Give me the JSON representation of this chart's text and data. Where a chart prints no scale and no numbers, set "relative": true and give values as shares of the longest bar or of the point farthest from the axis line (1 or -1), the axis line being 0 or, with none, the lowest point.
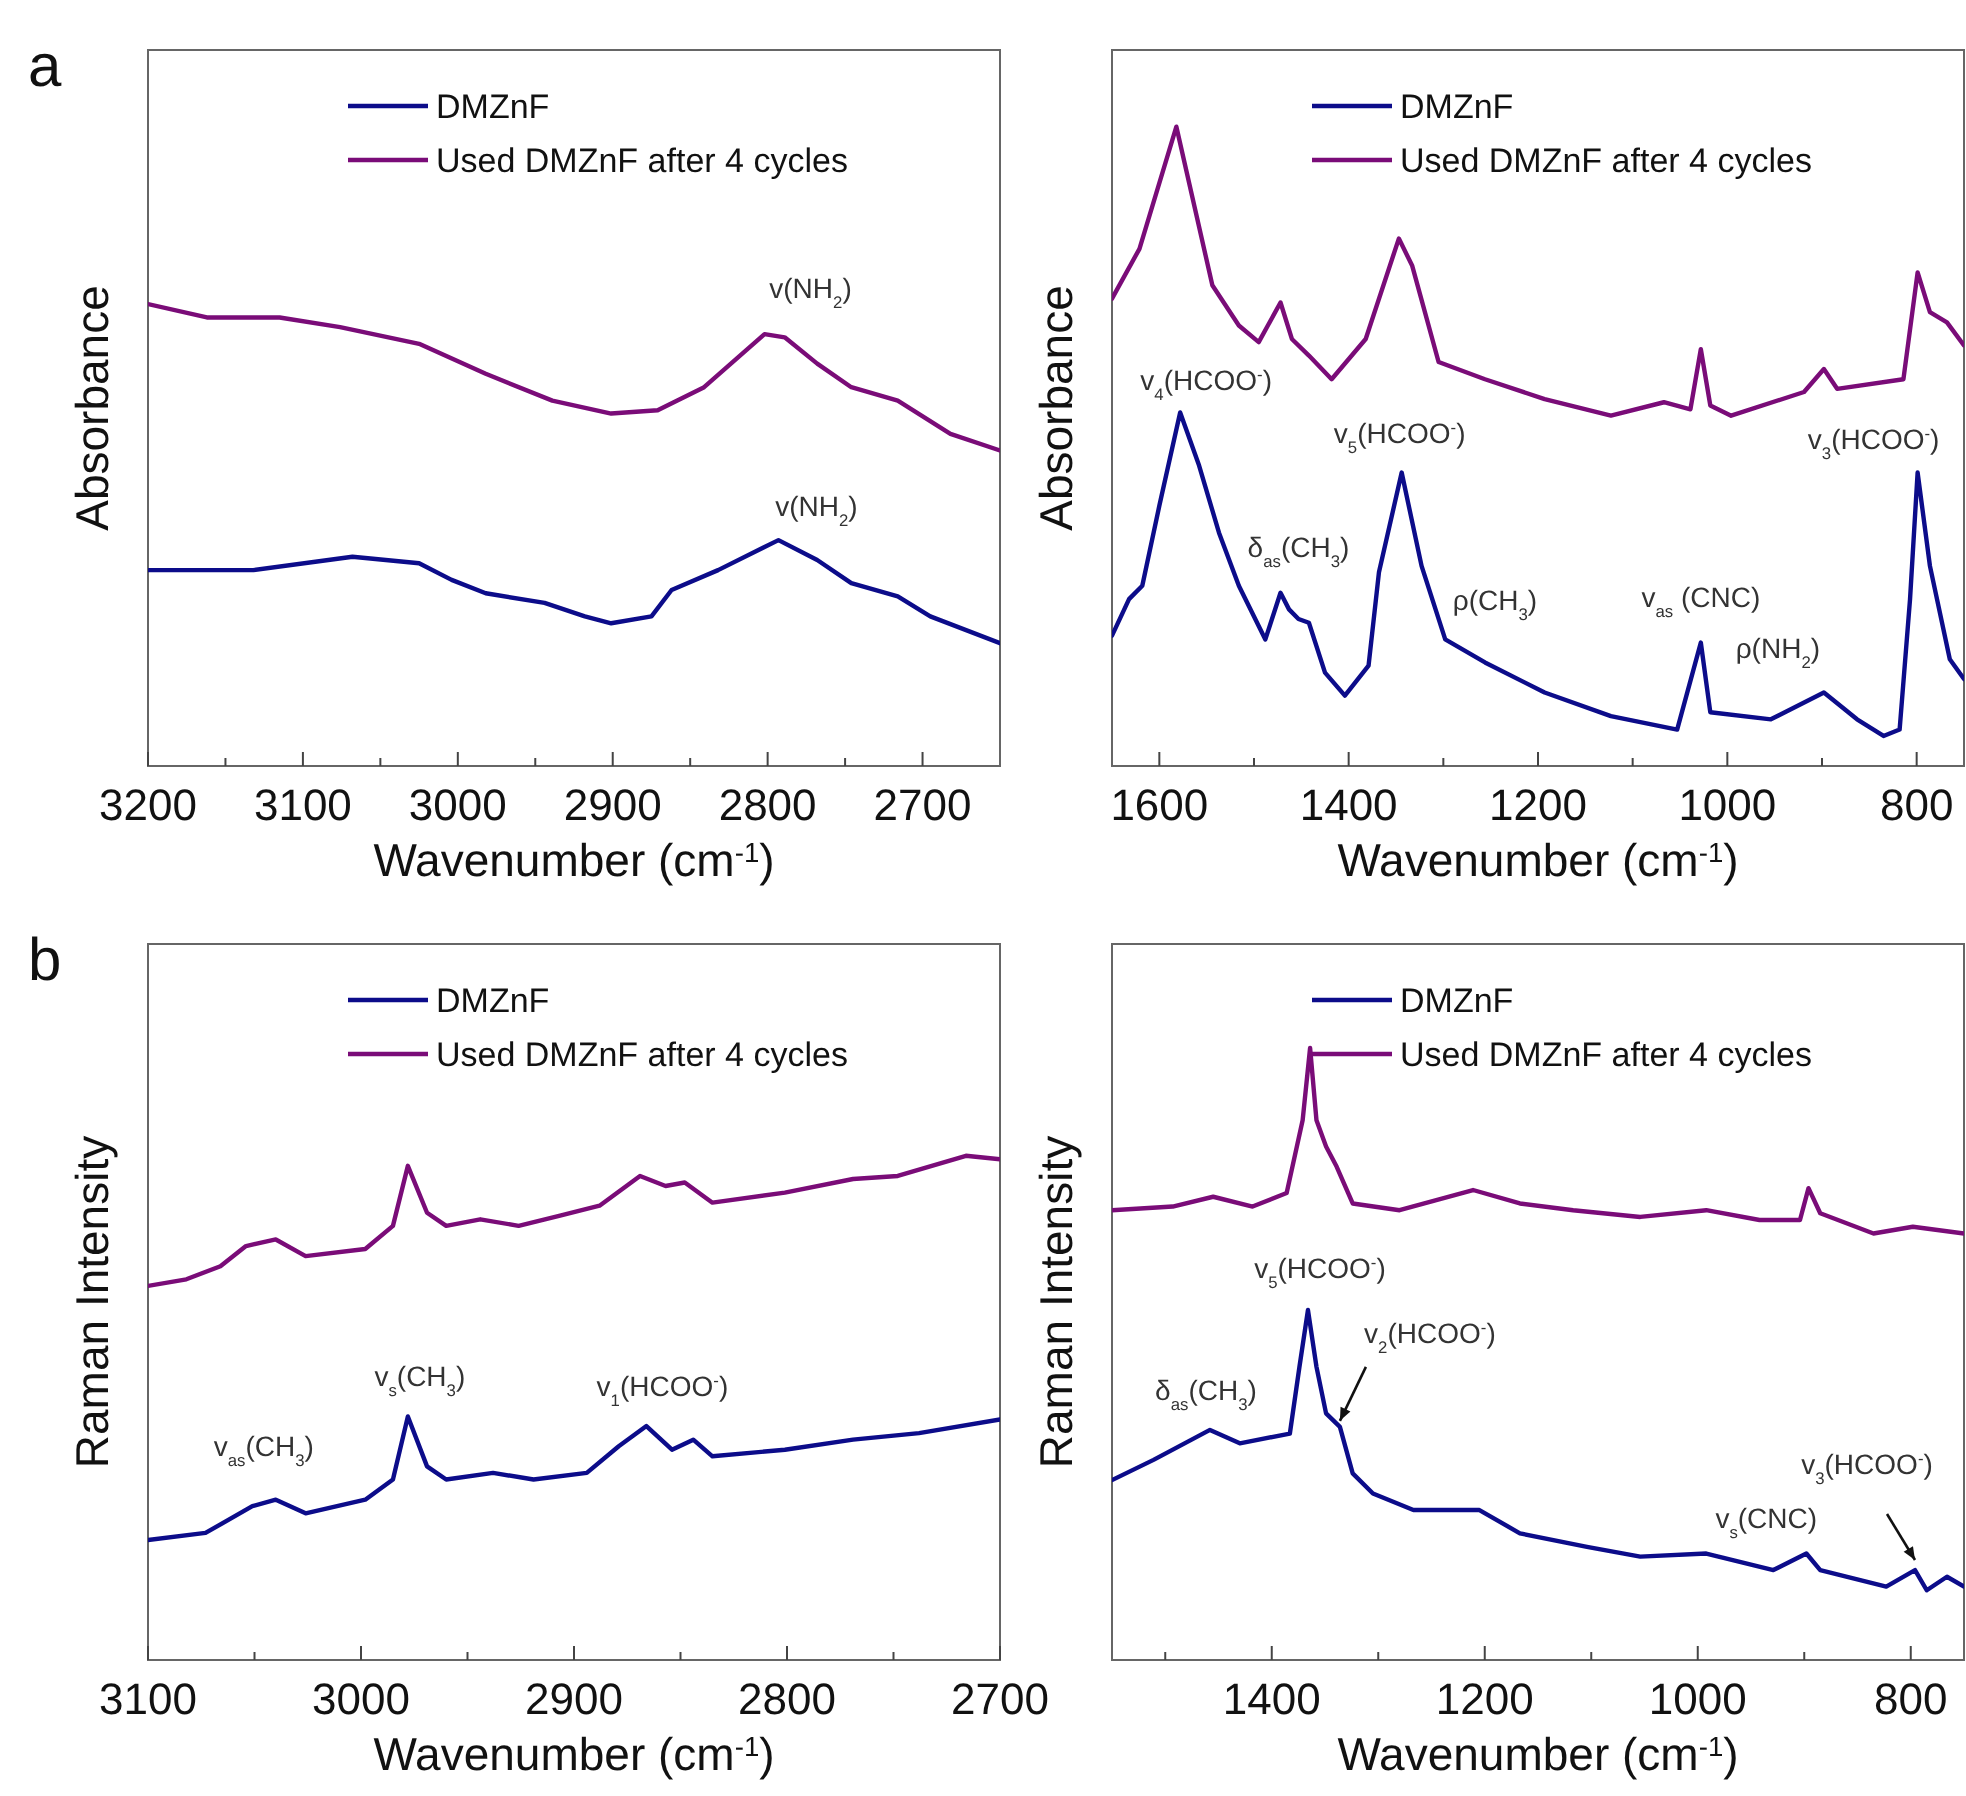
{
  "chart_data": [
    {
      "type": "line",
      "relative": true,
      "xlabel": "Wavenumber (cm$^{-1}$)",
      "ylabel": "Absorbance",
      "xlim": [
        3200,
        2650
      ],
      "xticks": [
        3200,
        {
          "value": 3150,
          "label": null
        },
        3100,
        {
          "value": 3050,
          "label": null
        },
        3000,
        {
          "value": 2950,
          "label": null
        },
        2900,
        {
          "value": 2850,
          "label": null
        },
        2800,
        {
          "value": 2750,
          "label": null
        },
        2700
      ],
      "legend": "top right",
      "annotations": [
        "a",
        {
          "text": "v(NH$_{2}$)",
          "x": 2802,
          "y": 0.935
        },
        {
          "text": "v(NH$_{2}$)",
          "x": 2793,
          "y": 0.489
        }
      ],
      "series": [
        {
          "name": "DMZnF",
          "color": "#0c0c8a",
          "x": [
            3200,
            3132,
            3068,
            3025,
            3004,
            2982,
            2944,
            2918,
            2901,
            2875,
            2862,
            2832,
            2793,
            2768,
            2746,
            2716,
            2695,
            2650
          ],
          "values": [
            0.424,
            0.424,
            0.453,
            0.439,
            0.403,
            0.374,
            0.353,
            0.324,
            0.309,
            0.324,
            0.381,
            0.424,
            0.489,
            0.446,
            0.396,
            0.367,
            0.324,
            0.266
          ]
        },
        {
          "name": "Used DMZnF after 4 cycles",
          "color": "#7a0c78",
          "x": [
            3200,
            3162,
            3115,
            3076,
            3025,
            2982,
            2939,
            2901,
            2871,
            2841,
            2802,
            2789,
            2768,
            2746,
            2716,
            2682,
            2650
          ],
          "values": [
            1.0,
            0.971,
            0.971,
            0.95,
            0.914,
            0.849,
            0.791,
            0.763,
            0.77,
            0.82,
            0.935,
            0.928,
            0.871,
            0.82,
            0.791,
            0.719,
            0.683
          ]
        }
      ]
    },
    {
      "type": "line",
      "relative": true,
      "xlabel": "Wavenumber (cm$^{-1}$)",
      "ylabel": "Absorbance",
      "xlim": [
        1650,
        750
      ],
      "xticks": [
        1600,
        {
          "value": 1500,
          "label": null
        },
        1400,
        {
          "value": 1300,
          "label": null
        },
        1200,
        {
          "value": 1100,
          "label": null
        },
        1000,
        {
          "value": 900,
          "label": null
        },
        800
      ],
      "legend": "top right",
      "annotations": [
        {
          "text": "v$_{4}$(HCOO$^{-}$)",
          "x": 1578,
          "y": 0.553
        },
        {
          "text": "δ$_{as}$(CH$_{3}$)",
          "x": 1472,
          "y": 0.271
        },
        {
          "text": "v$_{5}$(HCOO$^{-}$)",
          "x": 1344,
          "y": 0.459
        },
        {
          "text": "ρ(CH$_{3}$)",
          "x": 1256,
          "y": 0.162
        },
        {
          "text": "v$_{as}$ (CNC)",
          "x": 1028,
          "y": 0.193
        },
        {
          "text": "ρ(NH$_{2}$)",
          "x": 898,
          "y": 0.115
        },
        {
          "text": "v$_{3}$(HCOO$^{-}$)",
          "x": 799,
          "y": 0.459
        }
      ],
      "series": [
        {
          "name": "DMZnF",
          "color": "#0c0c8a",
          "x": [
            1650,
            1632,
            1618,
            1600,
            1578,
            1558,
            1537,
            1516,
            1488,
            1472,
            1463,
            1453,
            1442,
            1425,
            1404,
            1379,
            1368,
            1344,
            1323,
            1298,
            1256,
            1193,
            1123,
            1053,
            1028,
            1018,
            954,
            898,
            863,
            835,
            818,
            807,
            799,
            786,
            765,
            750
          ],
          "values": [
            0.204,
            0.261,
            0.282,
            0.407,
            0.553,
            0.47,
            0.365,
            0.282,
            0.198,
            0.271,
            0.245,
            0.23,
            0.224,
            0.146,
            0.11,
            0.157,
            0.303,
            0.459,
            0.313,
            0.198,
            0.162,
            0.115,
            0.078,
            0.057,
            0.193,
            0.084,
            0.073,
            0.115,
            0.073,
            0.047,
            0.057,
            0.261,
            0.459,
            0.313,
            0.167,
            0.136
          ]
        },
        {
          "name": "Used DMZnF after 4 cycles",
          "color": "#7a0c78",
          "x": [
            1650,
            1621,
            1582,
            1544,
            1516,
            1495,
            1472,
            1460,
            1442,
            1418,
            1382,
            1347,
            1333,
            1305,
            1256,
            1193,
            1123,
            1067,
            1039,
            1028,
            1018,
            996,
            919,
            898,
            884,
            814,
            799,
            786,
            768,
            750
          ],
          "values": [
            0.731,
            0.809,
            1.0,
            0.752,
            0.689,
            0.663,
            0.725,
            0.668,
            0.642,
            0.605,
            0.668,
            0.825,
            0.783,
            0.632,
            0.605,
            0.574,
            0.548,
            0.569,
            0.558,
            0.652,
            0.564,
            0.548,
            0.585,
            0.621,
            0.59,
            0.605,
            0.772,
            0.71,
            0.694,
            0.658
          ]
        }
      ]
    },
    {
      "type": "line",
      "relative": true,
      "xlabel": "Wavenumber (cm$^{-1}$)",
      "ylabel": "Raman Intensity",
      "xlim": [
        3100,
        2700
      ],
      "xticks": [
        3100,
        {
          "value": 3050,
          "label": null
        },
        3000,
        {
          "value": 2950,
          "label": null
        },
        2900,
        {
          "value": 2850,
          "label": null
        },
        2800,
        {
          "value": 2750,
          "label": null
        },
        2700
      ],
      "legend": "top right",
      "annotations": [
        "b",
        {
          "text": "v$_{as}$(CH$_{3}$)",
          "x": 3040,
          "y": 0.318
        },
        {
          "text": "v$_{s}$(CH$_{3}$)",
          "x": 2978,
          "y": 0.483
        },
        {
          "text": "v$_{1}$(HCOO$^{-}$)",
          "x": 2866,
          "y": 0.464
        }
      ],
      "series": [
        {
          "name": "DMZnF",
          "color": "#0c0c8a",
          "x": [
            3100,
            3073,
            3051,
            3040,
            3026,
            2998,
            2985,
            2978,
            2969,
            2960,
            2938,
            2919,
            2894,
            2879,
            2866,
            2854,
            2844,
            2835,
            2801,
            2769,
            2738,
            2700
          ],
          "values": [
            0.238,
            0.252,
            0.305,
            0.318,
            0.291,
            0.318,
            0.358,
            0.483,
            0.384,
            0.358,
            0.371,
            0.358,
            0.371,
            0.424,
            0.464,
            0.417,
            0.437,
            0.404,
            0.417,
            0.437,
            0.45,
            0.477
          ]
        },
        {
          "name": "Used DMZnF after 4 cycles",
          "color": "#7a0c78",
          "x": [
            3100,
            3082,
            3066,
            3054,
            3040,
            3026,
            2998,
            2985,
            2978,
            2969,
            2960,
            2944,
            2926,
            2907,
            2888,
            2869,
            2857,
            2848,
            2835,
            2801,
            2769,
            2748,
            2716,
            2700
          ],
          "values": [
            0.742,
            0.755,
            0.781,
            0.821,
            0.834,
            0.801,
            0.815,
            0.861,
            0.98,
            0.887,
            0.861,
            0.874,
            0.861,
            0.881,
            0.901,
            0.96,
            0.94,
            0.947,
            0.907,
            0.927,
            0.954,
            0.96,
            1.0,
            0.993
          ]
        }
      ]
    },
    {
      "type": "line",
      "relative": true,
      "xlabel": "Wavenumber (cm$^{-1}$)",
      "ylabel": "Raman Intensity",
      "xlim": [
        1550,
        750
      ],
      "xticks": [
        {
          "value": 1500,
          "label": null
        },
        1400,
        {
          "value": 1300,
          "label": null
        },
        1200,
        {
          "value": 1100,
          "label": null
        },
        1000,
        {
          "value": 900,
          "label": null
        },
        800
      ],
      "legend": "top right",
      "annotations": [
        {
          "text": "δ$_{as}$(CH$_{3}$)",
          "x": 1458,
          "y": 0.376
        },
        {
          "text": "v$_{5}$(HCOO$^{-}$)",
          "x": 1366,
          "y": 0.572
        },
        {
          "text": "v$_{2}$(HCOO$^{-}$)",
          "x": 1336,
          "y": 0.381
        },
        {
          "text": "v$_{s}$(CNC)",
          "x": 992,
          "y": 0.174
        },
        {
          "text": "v$_{3}$(HCOO$^{-}$)",
          "x": 796,
          "y": 0.147
        }
      ],
      "series": [
        {
          "name": "DMZnF",
          "color": "#0c0c8a",
          "x": [
            1550,
            1511,
            1458,
            1430,
            1383,
            1374,
            1366,
            1358,
            1349,
            1336,
            1324,
            1305,
            1267,
            1205,
            1167,
            1104,
            1054,
            992,
            929,
            898,
            885,
            823,
            796,
            785,
            766,
            750
          ],
          "values": [
            0.294,
            0.327,
            0.376,
            0.354,
            0.37,
            0.479,
            0.572,
            0.479,
            0.403,
            0.381,
            0.305,
            0.272,
            0.245,
            0.245,
            0.207,
            0.185,
            0.169,
            0.174,
            0.147,
            0.174,
            0.147,
            0.12,
            0.147,
            0.114,
            0.136,
            0.12
          ]
        },
        {
          "name": "Used DMZnF after 4 cycles",
          "color": "#7a0c78",
          "x": [
            1550,
            1493,
            1455,
            1418,
            1386,
            1371,
            1364,
            1358,
            1349,
            1339,
            1324,
            1280,
            1211,
            1167,
            1117,
            1054,
            992,
            942,
            904,
            896,
            885,
            835,
            798,
            750
          ],
          "values": [
            0.735,
            0.741,
            0.757,
            0.741,
            0.763,
            0.882,
            1.0,
            0.882,
            0.839,
            0.806,
            0.746,
            0.735,
            0.768,
            0.746,
            0.735,
            0.724,
            0.735,
            0.719,
            0.719,
            0.771,
            0.73,
            0.697,
            0.708,
            0.697
          ]
        }
      ]
    }
  ]
}
